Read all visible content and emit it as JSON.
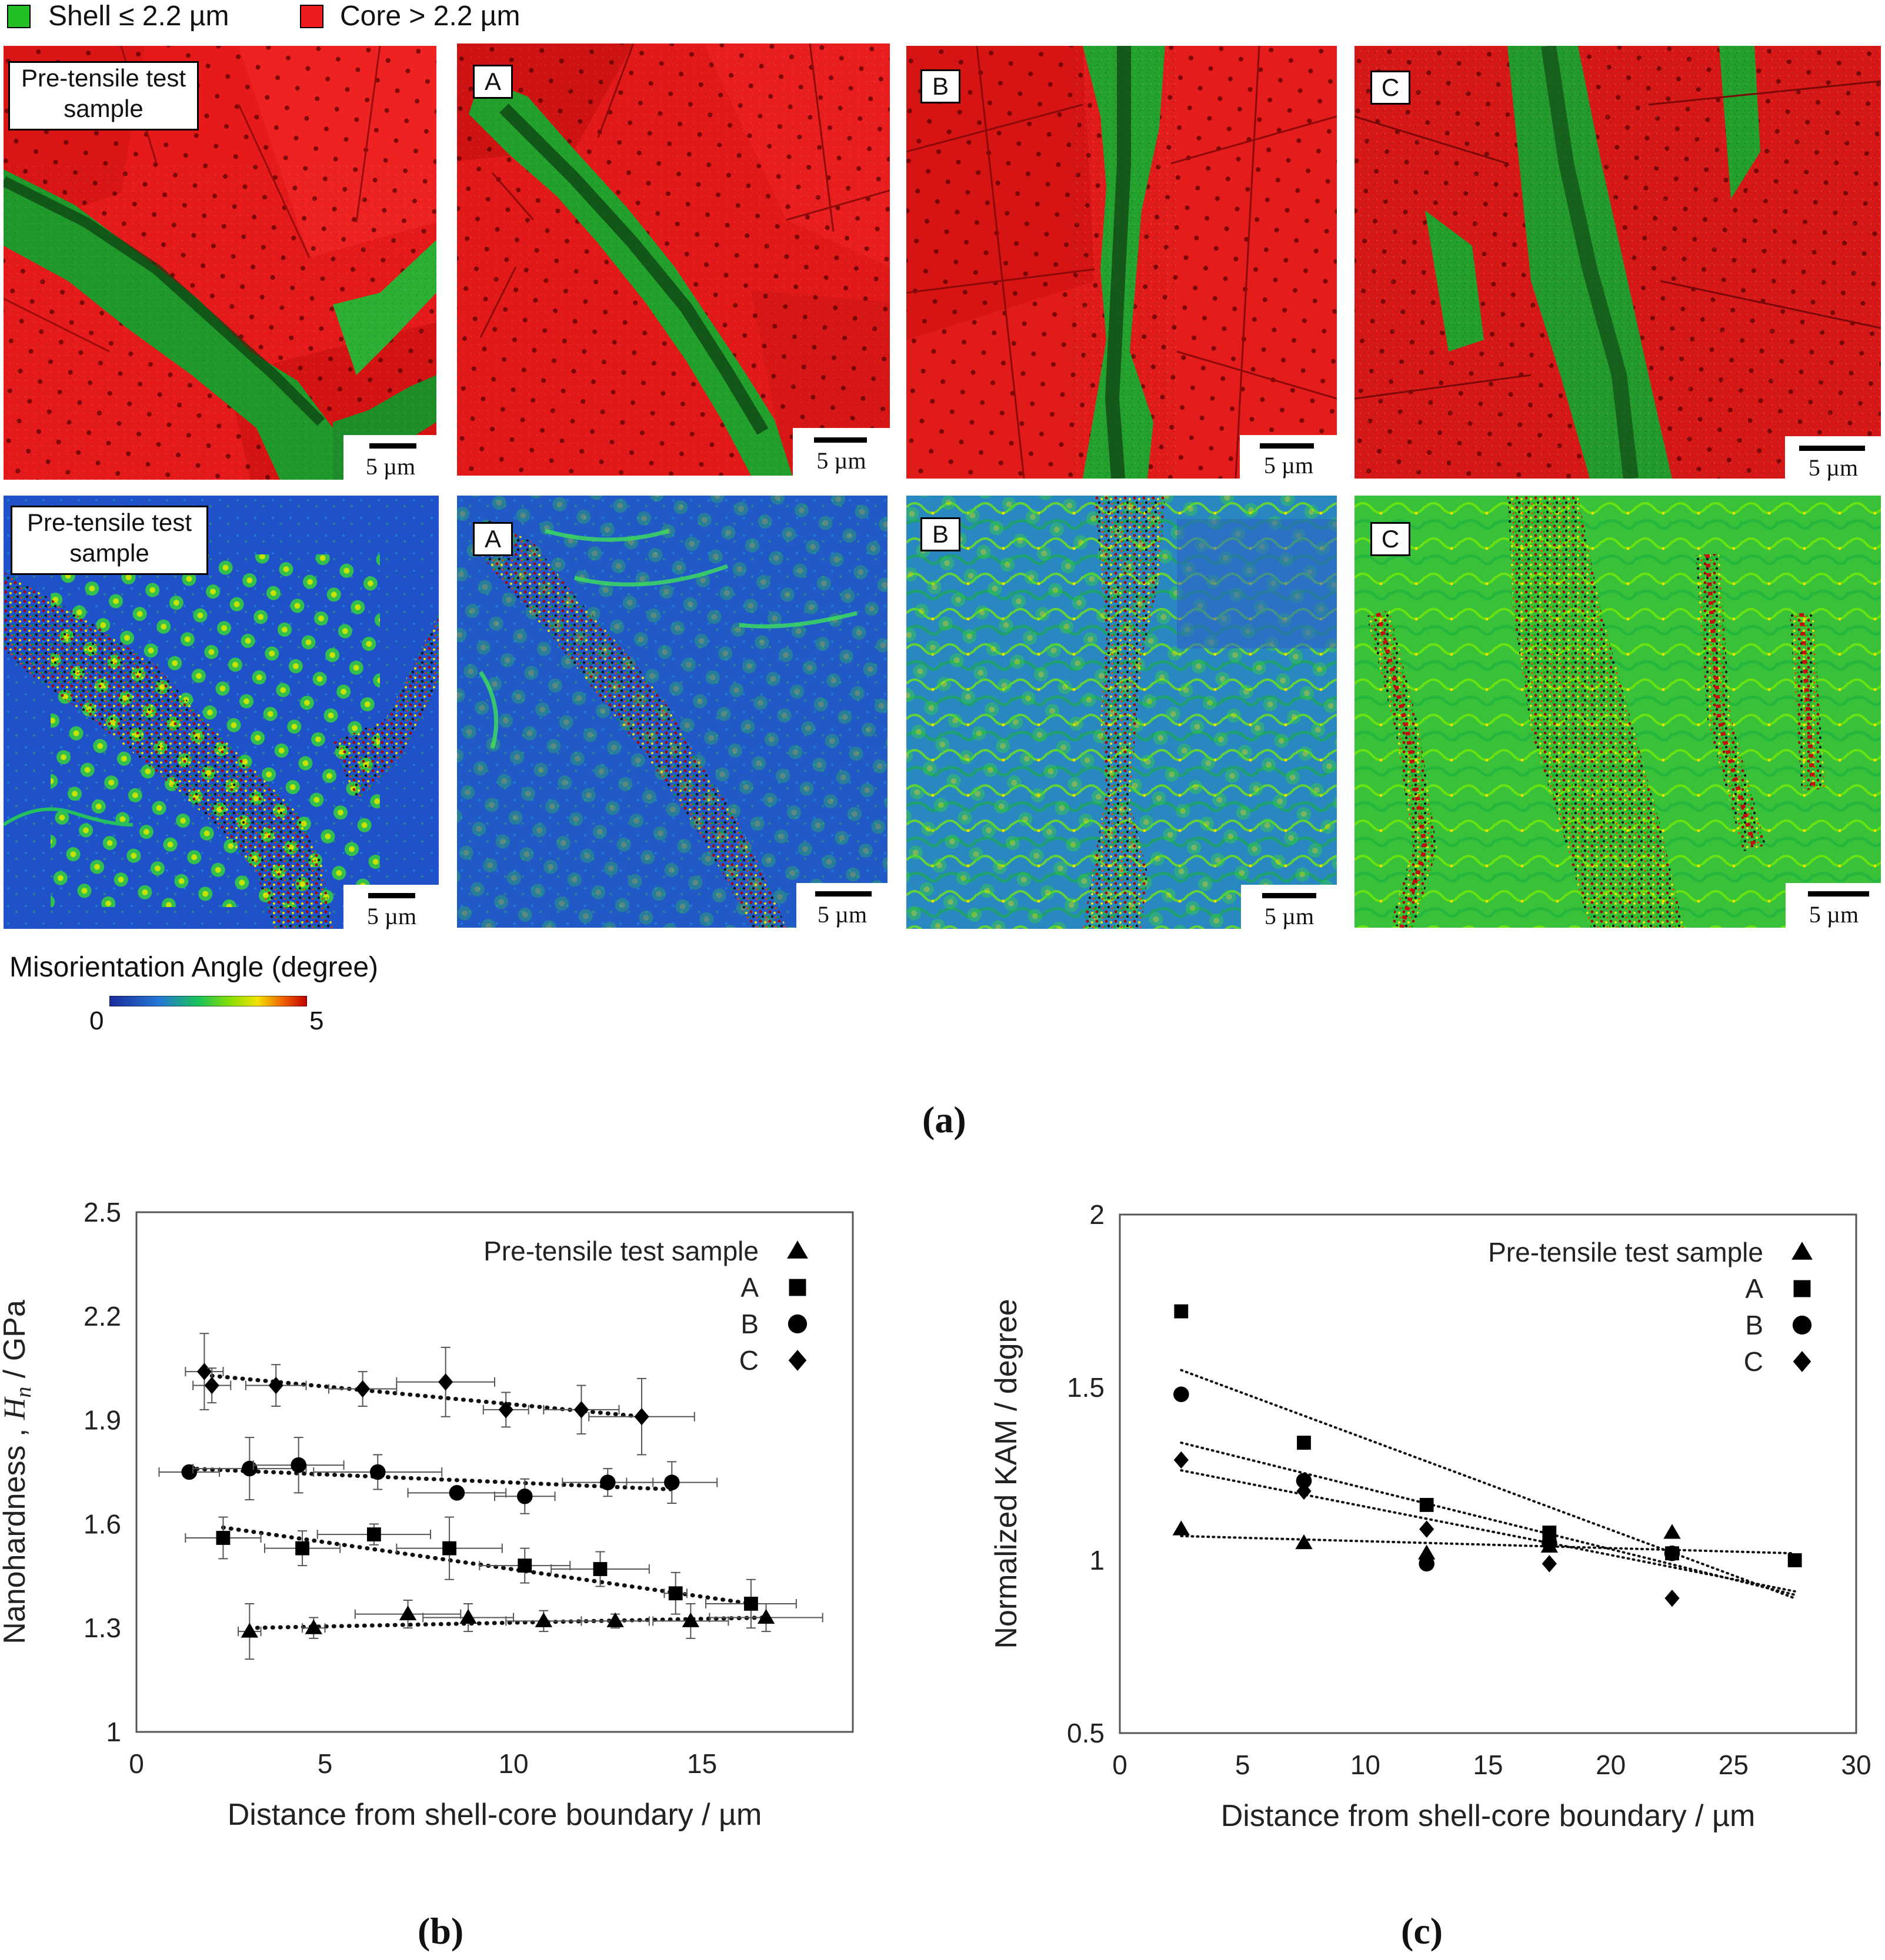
{
  "legend": {
    "shell_label": "Shell ≤ 2.2 µm",
    "core_label": "Core > 2.2 µm",
    "shell_color": "#22c022",
    "core_color": "#ee1c1c"
  },
  "panels_top": [
    {
      "label": "Pre-tensile test sample",
      "scale": "5 µm"
    },
    {
      "label": "A",
      "scale": "5 µm"
    },
    {
      "label": "B",
      "scale": "5 µm"
    },
    {
      "label": "C",
      "scale": "5 µm"
    }
  ],
  "panels_bottom": [
    {
      "label": "Pre-tensile test sample",
      "scale": "5 µm"
    },
    {
      "label": "A",
      "scale": "5 µm"
    },
    {
      "label": "B",
      "scale": "5 µm"
    },
    {
      "label": "C",
      "scale": "5 µm"
    }
  ],
  "pre_label_line1": "Pre-tensile test",
  "pre_label_line2": "sample",
  "colorbar": {
    "title": "Misorientation Angle (degree)",
    "min": "0",
    "max": "5"
  },
  "captions": {
    "a": "(a)",
    "b": "(b)",
    "c": "(c)"
  },
  "chart_data": [
    {
      "type": "scatter",
      "title": "",
      "xlabel": "Distance from shell-core boundary / µm",
      "ylabel_prefix": "Nanohardness , ",
      "ylabel_var": "H",
      "ylabel_sub": "n",
      "ylabel_suffix": " / GPa",
      "xlim": [
        0,
        19
      ],
      "ylim": [
        1,
        2.5
      ],
      "xticks": [
        0,
        5,
        10,
        15
      ],
      "yticks": [
        1,
        1.3,
        1.6,
        1.9,
        2.2,
        2.5
      ],
      "ytick_labels": [
        "1",
        "1.3",
        "1.6",
        "1.9",
        "2.2",
        "2.5"
      ],
      "legend_position": "top-right",
      "series": [
        {
          "name": "Pre-tensile test sample",
          "marker": "triangle",
          "x": [
            3.0,
            4.7,
            7.2,
            8.8,
            10.8,
            12.7,
            14.7,
            16.7
          ],
          "y": [
            1.29,
            1.3,
            1.34,
            1.33,
            1.32,
            1.32,
            1.32,
            1.33
          ],
          "xerr": [
            0.3,
            0.3,
            1.4,
            1.2,
            1.0,
            0.9,
            1.0,
            1.5
          ],
          "yerr": [
            0.08,
            0.03,
            0.04,
            0.04,
            0.03,
            0.02,
            0.05,
            0.04
          ],
          "trend": [
            [
              3.0,
              1.3
            ],
            [
              16.7,
              1.33
            ]
          ]
        },
        {
          "name": "A",
          "marker": "square",
          "x": [
            2.3,
            4.4,
            6.3,
            8.3,
            10.3,
            12.3,
            14.3,
            16.3
          ],
          "y": [
            1.56,
            1.53,
            1.57,
            1.53,
            1.48,
            1.47,
            1.4,
            1.37
          ],
          "xerr": [
            1.0,
            1.0,
            1.5,
            1.4,
            1.2,
            1.3,
            0.3,
            1.2
          ],
          "yerr": [
            0.06,
            0.05,
            0.03,
            0.09,
            0.05,
            0.05,
            0.06,
            0.07
          ],
          "trend": [
            [
              2.3,
              1.59
            ],
            [
              16.3,
              1.37
            ]
          ]
        },
        {
          "name": "B",
          "marker": "circle",
          "x": [
            1.4,
            3.0,
            4.3,
            6.4,
            8.5,
            10.3,
            12.5,
            14.2
          ],
          "y": [
            1.75,
            1.76,
            1.77,
            1.75,
            1.69,
            1.68,
            1.72,
            1.72
          ],
          "xerr": [
            0.8,
            1.5,
            1.2,
            1.7,
            1.3,
            0.8,
            1.2,
            1.2
          ],
          "yerr": [
            0.01,
            0.09,
            0.08,
            0.05,
            0.01,
            0.05,
            0.04,
            0.06
          ],
          "trend": [
            [
              1.4,
              1.76
            ],
            [
              14.2,
              1.7
            ]
          ]
        },
        {
          "name": "C",
          "marker": "diamond",
          "x": [
            1.8,
            2.0,
            3.7,
            6.0,
            8.2,
            9.8,
            11.8,
            13.4
          ],
          "y": [
            2.04,
            2.0,
            2.0,
            1.99,
            2.01,
            1.93,
            1.93,
            1.91
          ],
          "xerr": [
            0.5,
            0.5,
            0.8,
            0.9,
            1.3,
            0.6,
            1.0,
            1.4
          ],
          "yerr": [
            0.11,
            0.05,
            0.06,
            0.05,
            0.1,
            0.05,
            0.07,
            0.11
          ],
          "trend": [
            [
              1.8,
              2.03
            ],
            [
              13.4,
              1.91
            ]
          ]
        }
      ]
    },
    {
      "type": "scatter",
      "title": "",
      "xlabel": "Distance from shell-core boundary / µm",
      "ylabel": "Normalized KAM / degree",
      "xlim": [
        0,
        30
      ],
      "ylim": [
        0.5,
        2
      ],
      "xticks": [
        0,
        5,
        10,
        15,
        20,
        25,
        30
      ],
      "yticks": [
        0.5,
        1,
        1.5,
        2
      ],
      "ytick_labels": [
        "0.5",
        "1",
        "1.5",
        "2"
      ],
      "legend_position": "top-right",
      "series": [
        {
          "name": "Pre-tensile test sample",
          "marker": "triangle",
          "x": [
            2.5,
            7.5,
            12.5,
            17.5,
            22.5
          ],
          "y": [
            1.09,
            1.05,
            1.02,
            1.04,
            1.08
          ],
          "trend": [
            [
              2.5,
              1.07
            ],
            [
              27.5,
              1.02
            ]
          ]
        },
        {
          "name": "A",
          "marker": "square",
          "x": [
            2.5,
            7.5,
            12.5,
            17.5,
            22.5,
            27.5
          ],
          "y": [
            1.72,
            1.34,
            1.16,
            1.08,
            1.02,
            1.0
          ],
          "trend": [
            [
              2.5,
              1.55
            ],
            [
              27.5,
              0.89
            ]
          ]
        },
        {
          "name": "B",
          "marker": "circle",
          "x": [
            2.5,
            7.5,
            12.5,
            17.5,
            22.5
          ],
          "y": [
            1.48,
            1.23,
            0.99,
            1.05,
            1.02
          ],
          "trend": [
            [
              2.5,
              1.34
            ],
            [
              27.5,
              0.9
            ]
          ]
        },
        {
          "name": "C",
          "marker": "diamond",
          "x": [
            2.5,
            7.5,
            12.5,
            17.5,
            22.5
          ],
          "y": [
            1.29,
            1.2,
            1.09,
            0.99,
            0.89
          ],
          "trend": [
            [
              2.5,
              1.26
            ],
            [
              27.5,
              0.91
            ]
          ]
        }
      ]
    }
  ]
}
